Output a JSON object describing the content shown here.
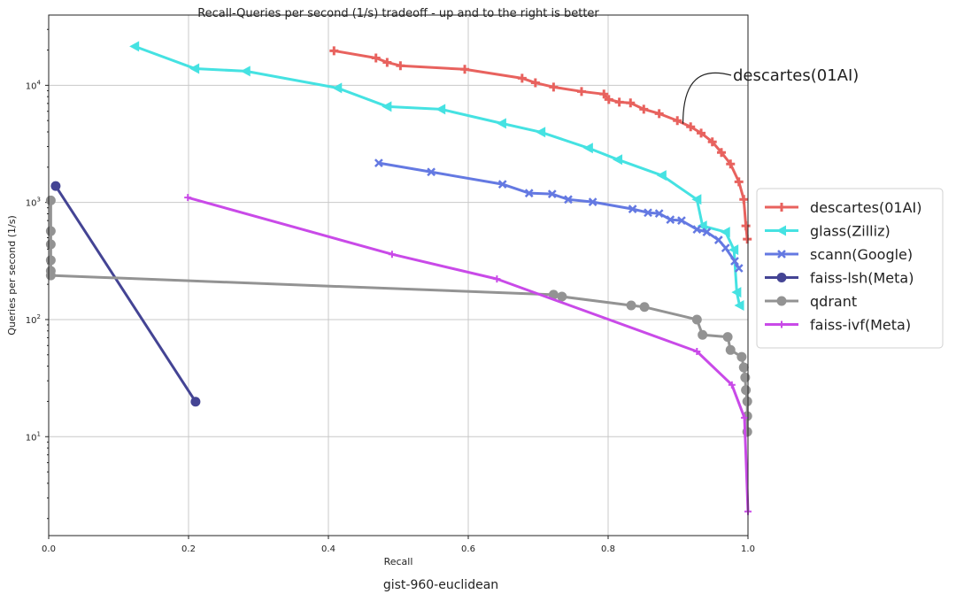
{
  "chart_data": {
    "type": "line",
    "title": "Recall-Queries per second (1/s) tradeoff - up and to the right is better",
    "xlabel": "Recall",
    "ylabel": "Queries per second (1/s)",
    "caption": "gist-960-euclidean",
    "xlim": [
      0.0,
      1.0
    ],
    "ylim": [
      1.43,
      39800
    ],
    "yscale": "log",
    "grid": true,
    "legend_position": "right-outside",
    "x_ticks": [
      "0.0",
      "0.2",
      "0.4",
      "0.6",
      "0.8",
      "1.0"
    ],
    "x_tick_values": [
      0,
      0.2,
      0.4,
      0.6,
      0.8,
      1.0
    ],
    "y_ticks": [
      {
        "base": "10",
        "exp": "1",
        "value": 10
      },
      {
        "base": "10",
        "exp": "2",
        "value": 100
      },
      {
        "base": "10",
        "exp": "3",
        "value": 1000
      },
      {
        "base": "10",
        "exp": "4",
        "value": 10000
      }
    ],
    "annotation": {
      "text": "descartes(01AI)",
      "x": 0.907,
      "y": 4700
    },
    "series": [
      {
        "name": "descartes(01AI)",
        "color": "#e8625e",
        "marker": "plus",
        "x": [
          0.408,
          0.468,
          0.484,
          0.503,
          0.595,
          0.677,
          0.696,
          0.722,
          0.762,
          0.794,
          0.801,
          0.816,
          0.832,
          0.851,
          0.873,
          0.899,
          0.918,
          0.933,
          0.949,
          0.962,
          0.975,
          0.987,
          0.994,
          0.997,
          0.999
        ],
        "y": [
          19700,
          17100,
          15700,
          14700,
          13700,
          11500,
          10500,
          9660,
          8860,
          8410,
          7570,
          7190,
          7070,
          6250,
          5730,
          4990,
          4420,
          3910,
          3290,
          2670,
          2130,
          1500,
          1060,
          631,
          486
        ]
      },
      {
        "name": "glass(Zilliz)",
        "color": "#45e2e2",
        "marker": "triangle-left",
        "x": [
          0.123,
          0.209,
          0.282,
          0.413,
          0.484,
          0.561,
          0.648,
          0.704,
          0.772,
          0.814,
          0.877,
          0.927,
          0.935,
          0.968,
          0.98,
          0.984,
          0.988
        ],
        "y": [
          21500,
          13900,
          13200,
          9490,
          6590,
          6250,
          4730,
          3980,
          2910,
          2320,
          1700,
          1060,
          631,
          559,
          394,
          171,
          132
        ]
      },
      {
        "name": "scann(Google)",
        "color": "#6479e2",
        "marker": "x",
        "x": [
          0.472,
          0.547,
          0.649,
          0.687,
          0.72,
          0.743,
          0.778,
          0.835,
          0.857,
          0.873,
          0.889,
          0.905,
          0.927,
          0.941,
          0.958,
          0.968,
          0.981,
          0.987
        ],
        "y": [
          2170,
          1820,
          1430,
          1200,
          1180,
          1060,
          1010,
          878,
          818,
          805,
          713,
          700,
          589,
          559,
          478,
          408,
          315,
          274
        ]
      },
      {
        "name": "faiss-lsh(Meta)",
        "color": "#444494",
        "marker": "circle",
        "x": [
          0.01,
          0.21
        ],
        "y": [
          1380,
          19.9
        ]
      },
      {
        "name": "qdrant",
        "color": "#939393",
        "marker": "circle",
        "x": [
          0.003,
          0.003,
          0.003,
          0.003,
          0.003,
          0.003,
          0.722,
          0.734,
          0.833,
          0.852,
          0.927,
          0.935,
          0.971,
          0.975,
          0.991,
          0.994,
          0.996,
          0.997,
          0.999,
          0.999,
          0.999
        ],
        "y": [
          1040,
          569,
          439,
          321,
          260,
          238,
          163,
          157,
          132,
          128,
          100,
          74,
          71,
          55,
          48,
          39,
          32,
          25,
          20,
          15,
          11
        ]
      },
      {
        "name": "faiss-ivf(Meta)",
        "color": "#c94ae8",
        "marker": "plus",
        "x": [
          0.199,
          0.491,
          0.641,
          0.927,
          0.977,
          0.995,
          1.0
        ],
        "y": [
          1100,
          361,
          222,
          53.4,
          27.7,
          14.5,
          2.3
        ]
      }
    ]
  }
}
